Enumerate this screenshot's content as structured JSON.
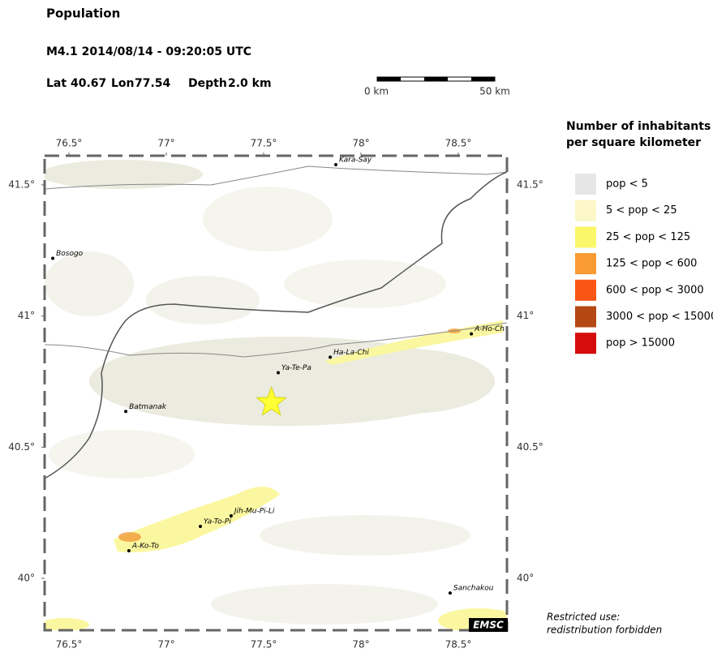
{
  "header": {
    "title": "Population",
    "event": "M4.1  2014/08/14 - 09:20:05 UTC",
    "lat_label": "Lat",
    "lat": 40.67,
    "lon_label": "Lon",
    "lon": 77.54,
    "depth_label": "Depth",
    "depth": "2.0 km"
  },
  "scale": {
    "start": "0 km",
    "end": "50 km"
  },
  "map": {
    "xlim": [
      76.375,
      78.75
    ],
    "ylim": [
      39.802,
      41.611
    ],
    "marker_color": "#ffff33",
    "xticks": [
      {
        "value": 76.5,
        "label": "76.5°"
      },
      {
        "value": 77,
        "label": "77°"
      },
      {
        "value": 77.5,
        "label": "77.5°"
      },
      {
        "value": 78,
        "label": "78°"
      },
      {
        "value": 78.5,
        "label": "78.5°"
      }
    ],
    "yticks": [
      {
        "value": 41.5,
        "label": "41.5°"
      },
      {
        "value": 41,
        "label": "41°"
      },
      {
        "value": 40.5,
        "label": "40.5°"
      },
      {
        "value": 40,
        "label": "40°"
      }
    ],
    "cities": [
      {
        "name": "Kara-Say",
        "lon": 77.871,
        "lat": 41.577
      },
      {
        "name": "Bosogo",
        "lon": 76.417,
        "lat": 41.22
      },
      {
        "name": "Ha-La-Chi",
        "lon": 77.842,
        "lat": 40.843
      },
      {
        "name": "A-Ho-Ch",
        "lon": 78.567,
        "lat": 40.932
      },
      {
        "name": "Ya-Te-Pa",
        "lon": 77.575,
        "lat": 40.784
      },
      {
        "name": "Batmanak",
        "lon": 76.792,
        "lat": 40.636
      },
      {
        "name": "Jih-Mu-Pi-Li",
        "lon": 77.333,
        "lat": 40.238
      },
      {
        "name": "Ya-To-Pi",
        "lon": 77.175,
        "lat": 40.198
      },
      {
        "name": "A-Ko-To",
        "lon": 76.808,
        "lat": 40.105
      },
      {
        "name": "Sanchakou",
        "lon": 78.458,
        "lat": 39.944
      }
    ]
  },
  "legend": {
    "title_1": "Number of inhabitants",
    "title_2": "per square kilometer",
    "items": [
      {
        "label": "pop < 5",
        "color": "#e6e6e6"
      },
      {
        "label": "5 < pop < 25",
        "color": "#fbf7c8"
      },
      {
        "label": "25 < pop < 125",
        "color": "#fbf76a"
      },
      {
        "label": "125 < pop < 600",
        "color": "#f99a33"
      },
      {
        "label": "600 < pop < 3000",
        "color": "#fa5514"
      },
      {
        "label": "3000 < pop < 15000",
        "color": "#b54712"
      },
      {
        "label": "pop > 15000",
        "color": "#d50c0c"
      }
    ]
  },
  "footer": {
    "line_1": "Restricted use:",
    "line_2": "redistribution forbidden",
    "logo": "EMSC"
  }
}
